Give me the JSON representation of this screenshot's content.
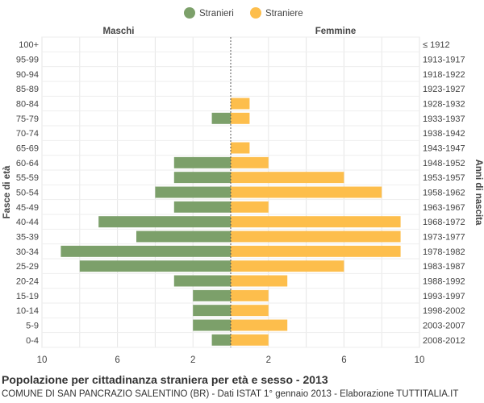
{
  "chart_data": {
    "type": "bar",
    "orientation": "horizontal-population-pyramid",
    "title": "Popolazione per cittadinanza straniera per età e sesso - 2013",
    "subtitle": "COMUNE DI SAN PANCRAZIO SALENTINO (BR) - Dati ISTAT 1° gennaio 2013 - Elaborazione TUTTITALIA.IT",
    "left_header": "Maschi",
    "right_header": "Femmine",
    "ylabel_left": "Fasce di età",
    "ylabel_right": "Anni di nascita",
    "legend": {
      "position": "top-center",
      "items": [
        {
          "name": "Stranieri",
          "color": "#7ca06a"
        },
        {
          "name": "Straniere",
          "color": "#fdbe4c"
        }
      ]
    },
    "xlim": [
      -10,
      10
    ],
    "xticks": [
      "10",
      "6",
      "2",
      "2",
      "6",
      "10"
    ],
    "xtick_values": [
      -10,
      -6,
      -2,
      2,
      6,
      10
    ],
    "grid": true,
    "categories": [
      "100+",
      "95-99",
      "90-94",
      "85-89",
      "80-84",
      "75-79",
      "70-74",
      "65-69",
      "60-64",
      "55-59",
      "50-54",
      "45-49",
      "40-44",
      "35-39",
      "30-34",
      "25-29",
      "20-24",
      "15-19",
      "10-14",
      "5-9",
      "0-4"
    ],
    "birth_years": [
      "≤ 1912",
      "1913-1917",
      "1918-1922",
      "1923-1927",
      "1928-1932",
      "1933-1937",
      "1938-1942",
      "1943-1947",
      "1948-1952",
      "1953-1957",
      "1958-1962",
      "1963-1967",
      "1968-1972",
      "1973-1977",
      "1978-1982",
      "1983-1987",
      "1988-1992",
      "1993-1997",
      "1998-2002",
      "2003-2007",
      "2008-2012"
    ],
    "series": [
      {
        "name": "Stranieri",
        "color": "#7ca06a",
        "values": [
          0,
          0,
          0,
          0,
          0,
          1,
          0,
          0,
          3,
          3,
          4,
          3,
          7,
          5,
          9,
          8,
          3,
          2,
          2,
          2,
          1
        ]
      },
      {
        "name": "Straniere",
        "color": "#fdbe4c",
        "values": [
          0,
          0,
          0,
          0,
          1,
          1,
          0,
          1,
          2,
          6,
          8,
          2,
          9,
          9,
          9,
          6,
          3,
          2,
          2,
          3,
          2
        ]
      }
    ]
  }
}
